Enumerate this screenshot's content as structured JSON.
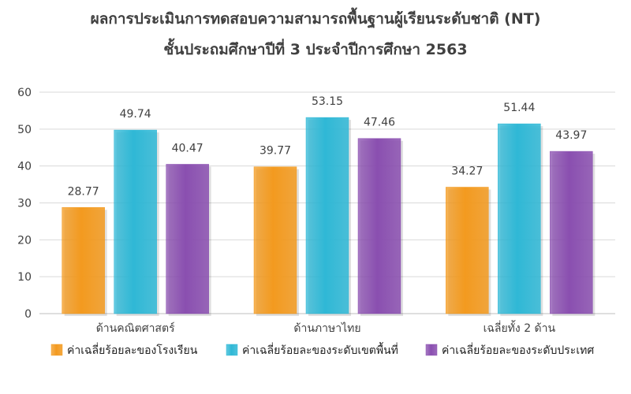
{
  "chart_data": {
    "type": "bar",
    "title_lines": [
      "ผลการประเมินการทดสอบความสามารถพื้นฐานผู้เรียนระดับชาติ (NT)",
      "ชั้นประถมศึกษาปีที่ 3 ประจำปีการศึกษา 2563"
    ],
    "categories": [
      "ด้านคณิตศาสตร์",
      "ด้านภาษาไทย",
      "เฉลี่ยทั้ง 2 ด้าน"
    ],
    "series": [
      {
        "name": "ค่าเฉลี่ยร้อยละของโรงเรียน",
        "values": [
          28.77,
          39.77,
          34.27
        ],
        "color": "#F39A1F"
      },
      {
        "name": "ค่าเฉลี่ยร้อยละของระดับเขตพื้นที่",
        "values": [
          49.74,
          53.15,
          51.44
        ],
        "color": "#2FB8D6"
      },
      {
        "name": "ค่าเฉลี่ยร้อยละของระดับประเทศ",
        "values": [
          40.47,
          47.46,
          43.97
        ],
        "color": "#8A4FB0"
      }
    ],
    "value_labels": [
      [
        "28.77",
        "39.77",
        "34.27"
      ],
      [
        "49.74",
        "53.15",
        "51.44"
      ],
      [
        "40.47",
        "47.46",
        "43.97"
      ]
    ],
    "ylim": [
      0,
      60
    ],
    "yticks": [
      "0",
      "10",
      "20",
      "30",
      "40",
      "50",
      "60"
    ],
    "grid": true,
    "legend_position": "bottom"
  }
}
